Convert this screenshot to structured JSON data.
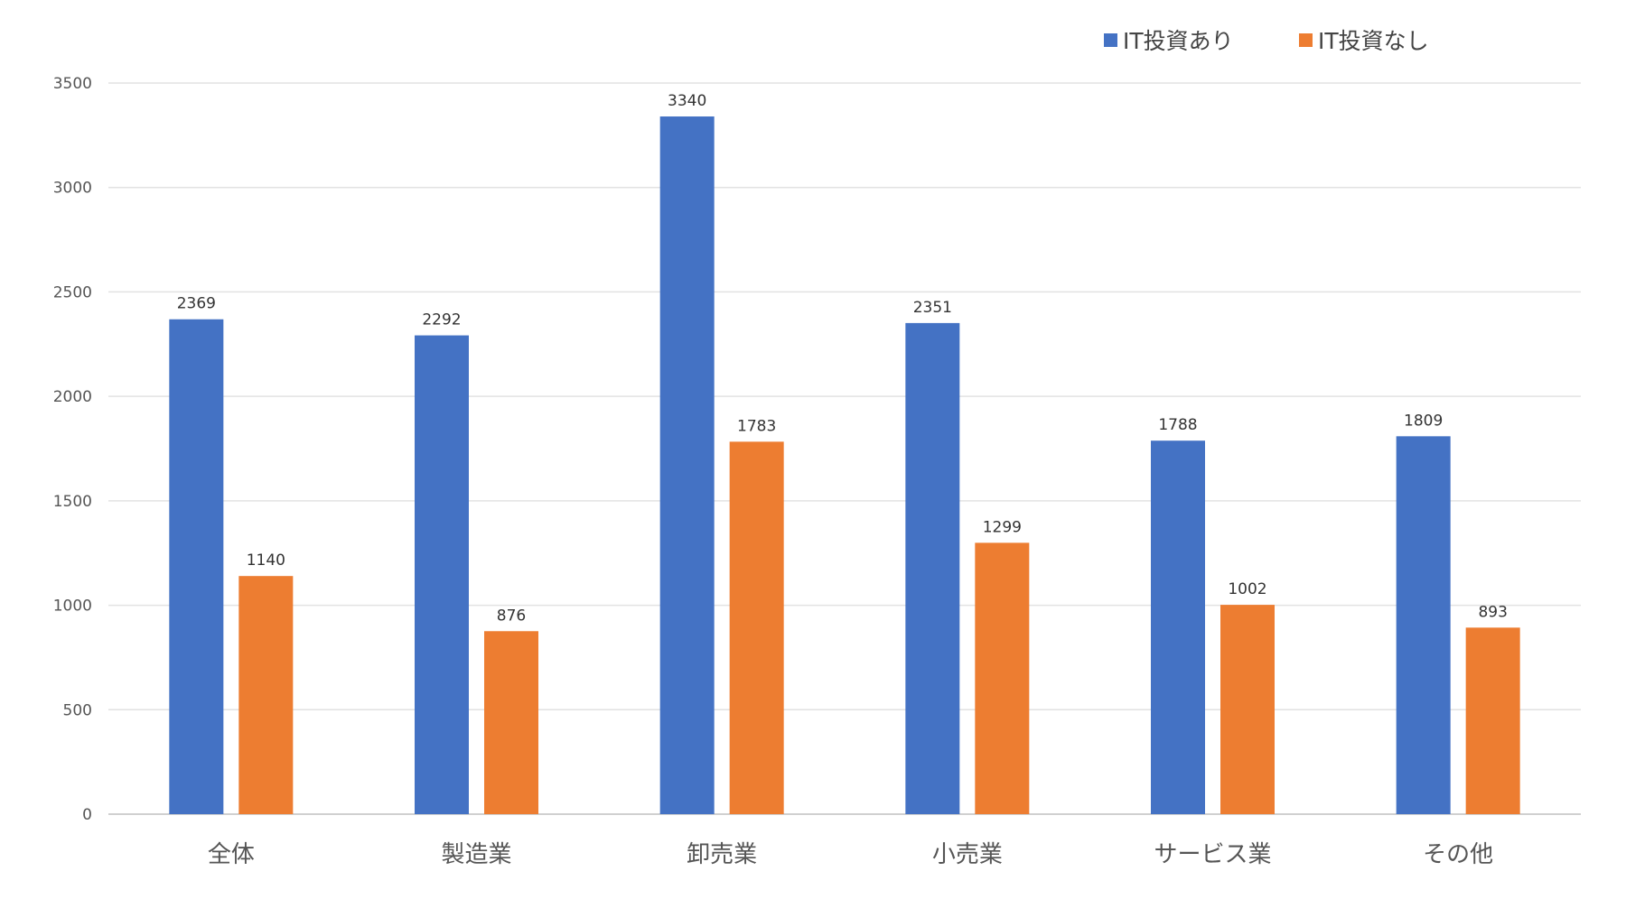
{
  "chart_data": {
    "type": "bar",
    "title": "",
    "xlabel": "",
    "ylabel": "",
    "categories": [
      "全体",
      "製造業",
      "卸売業",
      "小売業",
      "サービス業",
      "その他"
    ],
    "series": [
      {
        "name": "IT投資あり",
        "color": "#4472C4",
        "values": [
          2369,
          2292,
          3340,
          2351,
          1788,
          1809
        ]
      },
      {
        "name": "IT投資なし",
        "color": "#ED7D31",
        "values": [
          1140,
          876,
          1783,
          1299,
          1002,
          893
        ]
      }
    ],
    "ylim": [
      0,
      3500
    ],
    "yticks": [
      0,
      500,
      1000,
      1500,
      2000,
      2500,
      3000,
      3500
    ],
    "grid": true,
    "legend": "top-right",
    "data_labels": true
  }
}
